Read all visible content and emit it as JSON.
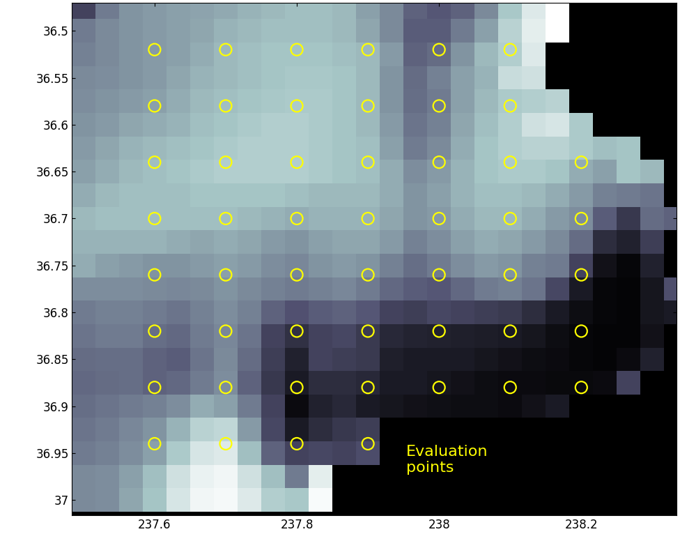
{
  "chart_data": {
    "type": "heatmap",
    "x": [
      237.5,
      237.5333,
      237.5667,
      237.6,
      237.6333,
      237.6667,
      237.7,
      237.7333,
      237.7667,
      237.8,
      237.8333,
      237.8667,
      237.9,
      237.9333,
      237.9667,
      238,
      238.0333,
      238.0667,
      238.1,
      238.1333,
      238.1667,
      238.2,
      238.2333,
      238.2667,
      238.3,
      238.3333
    ],
    "y": [
      36.475,
      36.5,
      36.525,
      36.55,
      36.575,
      36.6,
      36.625,
      36.65,
      36.675,
      36.7,
      36.725,
      36.75,
      36.775,
      36.8,
      36.825,
      36.85,
      36.875,
      36.9,
      36.925,
      36.95,
      36.975,
      37.0
    ],
    "cells": [
      [
        0.3,
        0.5,
        0.58,
        0.6,
        0.62,
        0.63,
        0.65,
        0.68,
        0.7,
        0.72,
        0.72,
        0.7,
        0.62,
        0.55,
        0.42,
        0.38,
        0.42,
        0.55,
        0.75,
        0.9,
        1.0,
        null,
        null,
        null,
        null,
        null
      ],
      [
        0.5,
        0.55,
        0.58,
        0.6,
        0.62,
        0.64,
        0.68,
        0.7,
        0.72,
        0.72,
        0.72,
        0.7,
        0.64,
        0.55,
        0.4,
        0.4,
        0.5,
        0.62,
        0.8,
        0.92,
        1.0,
        null,
        null,
        null,
        null,
        null
      ],
      [
        0.52,
        0.55,
        0.58,
        0.6,
        0.62,
        0.66,
        0.7,
        0.72,
        0.74,
        0.74,
        0.74,
        0.72,
        0.7,
        0.6,
        0.42,
        0.45,
        0.58,
        0.7,
        0.78,
        0.9,
        null,
        null,
        null,
        null,
        null,
        null
      ],
      [
        0.55,
        0.56,
        0.58,
        0.6,
        0.64,
        0.68,
        0.7,
        0.72,
        0.74,
        0.75,
        0.75,
        0.74,
        0.7,
        0.58,
        0.45,
        0.52,
        0.62,
        0.68,
        0.84,
        0.86,
        null,
        null,
        null,
        null,
        null,
        null
      ],
      [
        0.56,
        0.58,
        0.6,
        0.62,
        0.66,
        0.7,
        0.72,
        0.74,
        0.75,
        0.76,
        0.76,
        0.74,
        0.7,
        0.58,
        0.46,
        0.5,
        0.62,
        0.7,
        0.76,
        0.78,
        0.8,
        null,
        null,
        null,
        null,
        null
      ],
      [
        0.58,
        0.6,
        0.64,
        0.66,
        0.68,
        0.72,
        0.74,
        0.76,
        0.78,
        0.78,
        0.76,
        0.74,
        0.7,
        0.6,
        0.48,
        0.52,
        0.64,
        0.72,
        0.78,
        0.86,
        0.88,
        0.76,
        null,
        null,
        null,
        null
      ],
      [
        0.6,
        0.64,
        0.68,
        0.7,
        0.72,
        0.74,
        0.76,
        0.78,
        0.78,
        0.78,
        0.76,
        0.74,
        0.72,
        0.62,
        0.5,
        0.55,
        0.66,
        0.74,
        0.78,
        0.8,
        0.8,
        0.76,
        0.72,
        0.74,
        null,
        null
      ],
      [
        0.62,
        0.66,
        0.7,
        0.72,
        0.74,
        0.76,
        0.78,
        0.78,
        0.78,
        0.78,
        0.76,
        0.74,
        0.72,
        0.66,
        0.56,
        0.6,
        0.68,
        0.74,
        0.76,
        0.76,
        0.74,
        0.66,
        0.62,
        0.74,
        0.7,
        null
      ],
      [
        0.66,
        0.7,
        0.72,
        0.72,
        0.72,
        0.74,
        0.74,
        0.74,
        0.74,
        0.72,
        0.7,
        0.7,
        0.7,
        0.66,
        0.58,
        0.62,
        0.68,
        0.72,
        0.72,
        0.7,
        0.66,
        0.6,
        0.52,
        0.5,
        0.48,
        null
      ],
      [
        0.7,
        0.72,
        0.72,
        0.72,
        0.72,
        0.72,
        0.72,
        0.7,
        0.68,
        0.66,
        0.68,
        0.68,
        0.68,
        0.64,
        0.58,
        0.6,
        0.66,
        0.7,
        0.7,
        0.66,
        0.6,
        0.56,
        0.4,
        0.25,
        0.45,
        0.42
      ],
      [
        0.68,
        0.68,
        0.68,
        0.68,
        0.66,
        0.64,
        0.66,
        0.64,
        0.6,
        0.58,
        0.62,
        0.64,
        0.64,
        0.6,
        0.52,
        0.56,
        0.62,
        0.66,
        0.64,
        0.6,
        0.55,
        0.45,
        0.2,
        0.15,
        0.28,
        null
      ],
      [
        0.66,
        0.62,
        0.6,
        0.58,
        0.58,
        0.6,
        0.62,
        0.6,
        0.56,
        0.54,
        0.58,
        0.6,
        0.58,
        0.52,
        0.46,
        0.5,
        0.56,
        0.6,
        0.58,
        0.52,
        0.5,
        0.3,
        0.08,
        0.03,
        0.15,
        null
      ],
      [
        0.56,
        0.56,
        0.56,
        0.55,
        0.54,
        0.55,
        0.58,
        0.55,
        0.52,
        0.5,
        0.52,
        0.54,
        0.5,
        0.44,
        0.4,
        0.38,
        0.44,
        0.5,
        0.52,
        0.48,
        0.32,
        0.12,
        0.03,
        0.02,
        0.1,
        0.35
      ],
      [
        0.5,
        0.52,
        0.52,
        0.5,
        0.48,
        0.52,
        0.56,
        0.52,
        0.42,
        0.36,
        0.4,
        0.42,
        0.38,
        0.3,
        0.28,
        0.32,
        0.3,
        0.28,
        0.26,
        0.2,
        0.12,
        0.06,
        0.03,
        0.02,
        0.1,
        0.12
      ],
      [
        0.48,
        0.5,
        0.5,
        0.46,
        0.44,
        0.5,
        0.54,
        0.48,
        0.3,
        0.22,
        0.3,
        0.32,
        0.26,
        0.18,
        0.16,
        0.15,
        0.14,
        0.13,
        0.12,
        0.1,
        0.06,
        0.03,
        0.02,
        0.02,
        0.08,
        null
      ],
      [
        0.45,
        0.46,
        0.46,
        0.42,
        0.4,
        0.48,
        0.55,
        0.45,
        0.28,
        0.15,
        0.3,
        0.28,
        0.26,
        0.14,
        0.12,
        0.12,
        0.12,
        0.1,
        0.08,
        0.06,
        0.05,
        0.03,
        0.02,
        0.05,
        0.15,
        null
      ],
      [
        0.44,
        0.45,
        0.46,
        0.42,
        0.44,
        0.5,
        0.56,
        0.42,
        0.25,
        0.12,
        0.2,
        0.2,
        0.18,
        0.12,
        0.12,
        0.1,
        0.08,
        0.06,
        0.05,
        0.05,
        0.04,
        0.04,
        0.05,
        0.3,
        null,
        null
      ],
      [
        0.46,
        0.48,
        0.5,
        0.52,
        0.56,
        0.66,
        0.62,
        0.5,
        0.3,
        0.05,
        0.15,
        0.18,
        0.12,
        0.1,
        0.08,
        0.07,
        0.06,
        0.06,
        0.05,
        0.08,
        0.12,
        null,
        null,
        null,
        null,
        null
      ],
      [
        0.48,
        0.5,
        0.54,
        0.58,
        0.68,
        0.8,
        0.82,
        0.6,
        0.32,
        0.12,
        0.2,
        0.25,
        0.28,
        null,
        null,
        null,
        null,
        null,
        null,
        null,
        null,
        null,
        null,
        null,
        null,
        null
      ],
      [
        0.5,
        0.52,
        0.56,
        0.62,
        0.76,
        0.88,
        0.9,
        0.72,
        0.42,
        0.3,
        0.32,
        0.3,
        0.34,
        null,
        null,
        null,
        null,
        null,
        null,
        null,
        null,
        null,
        null,
        null,
        null,
        null
      ],
      [
        0.55,
        0.56,
        0.62,
        0.72,
        0.86,
        0.94,
        0.96,
        0.86,
        0.72,
        0.5,
        0.92,
        null,
        null,
        null,
        null,
        null,
        null,
        null,
        null,
        null,
        null,
        null,
        null,
        null,
        null,
        null
      ],
      [
        0.55,
        0.56,
        0.64,
        0.74,
        0.88,
        0.96,
        0.97,
        0.9,
        0.78,
        0.75,
        0.98,
        null,
        null,
        null,
        null,
        null,
        null,
        null,
        null,
        null,
        null,
        null,
        null,
        null,
        null,
        null
      ]
    ],
    "clim": [
      0,
      1
    ],
    "xlim": [
      237.484,
      238.334
    ],
    "ylim": [
      37.016,
      36.47
    ],
    "xticks": [
      237.6,
      237.8,
      238,
      238.2
    ],
    "yticks": [
      36.5,
      36.55,
      36.6,
      36.65,
      36.7,
      36.75,
      36.8,
      36.85,
      36.9,
      36.95,
      37
    ],
    "series": [
      {
        "name": "Evaluation\npoints",
        "type": "scatter",
        "color": "#ffff00",
        "marker": "o",
        "x": [
          237.6,
          237.7,
          237.8,
          237.9,
          238.0,
          238.1,
          237.6,
          237.7,
          237.8,
          237.9,
          238.0,
          238.1,
          237.6,
          237.7,
          237.8,
          237.9,
          238.0,
          238.1,
          238.2,
          237.6,
          237.7,
          237.8,
          237.9,
          238.0,
          238.1,
          238.2,
          237.6,
          237.7,
          237.8,
          237.9,
          238.0,
          238.1,
          238.2,
          237.6,
          237.7,
          237.8,
          237.9,
          238.0,
          238.1,
          238.2,
          237.6,
          237.7,
          237.8,
          237.9,
          238.0,
          238.1,
          238.2,
          237.6,
          237.7,
          237.8,
          237.9
        ],
        "y": [
          36.52,
          36.52,
          36.52,
          36.52,
          36.52,
          36.52,
          36.58,
          36.58,
          36.58,
          36.58,
          36.58,
          36.58,
          36.64,
          36.64,
          36.64,
          36.64,
          36.64,
          36.64,
          36.64,
          36.7,
          36.7,
          36.7,
          36.7,
          36.7,
          36.7,
          36.7,
          36.76,
          36.76,
          36.76,
          36.76,
          36.76,
          36.76,
          36.76,
          36.82,
          36.82,
          36.82,
          36.82,
          36.82,
          36.82,
          36.82,
          36.88,
          36.88,
          36.88,
          36.88,
          36.88,
          36.88,
          36.88,
          36.94,
          36.94,
          36.94,
          36.94
        ]
      }
    ]
  }
}
